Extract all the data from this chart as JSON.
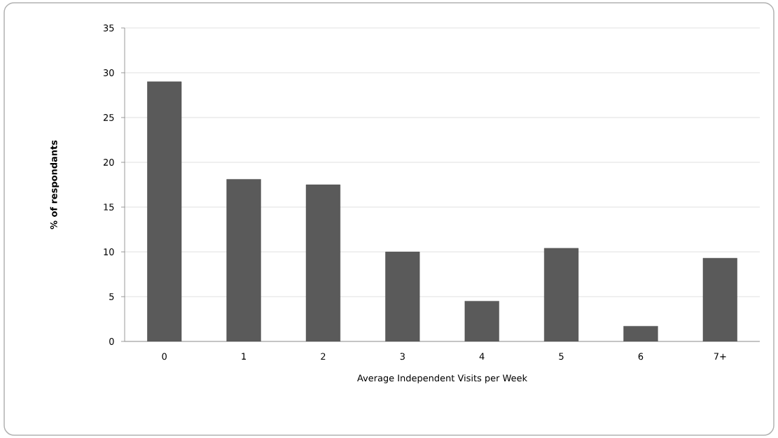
{
  "chart_data": {
    "type": "bar",
    "categories": [
      "0",
      "1",
      "2",
      "3",
      "4",
      "5",
      "6",
      "7+"
    ],
    "values": [
      29,
      18.1,
      17.5,
      10,
      4.5,
      10.4,
      1.7,
      9.3
    ],
    "color": "#5a5a5a",
    "xlabel": "Average Independent Visits per Week",
    "ylabel": "% of respondants",
    "ylim": [
      0,
      35
    ],
    "yticks": [
      0,
      5,
      10,
      15,
      20,
      25,
      30,
      35
    ],
    "grid": "y",
    "legend": false
  }
}
